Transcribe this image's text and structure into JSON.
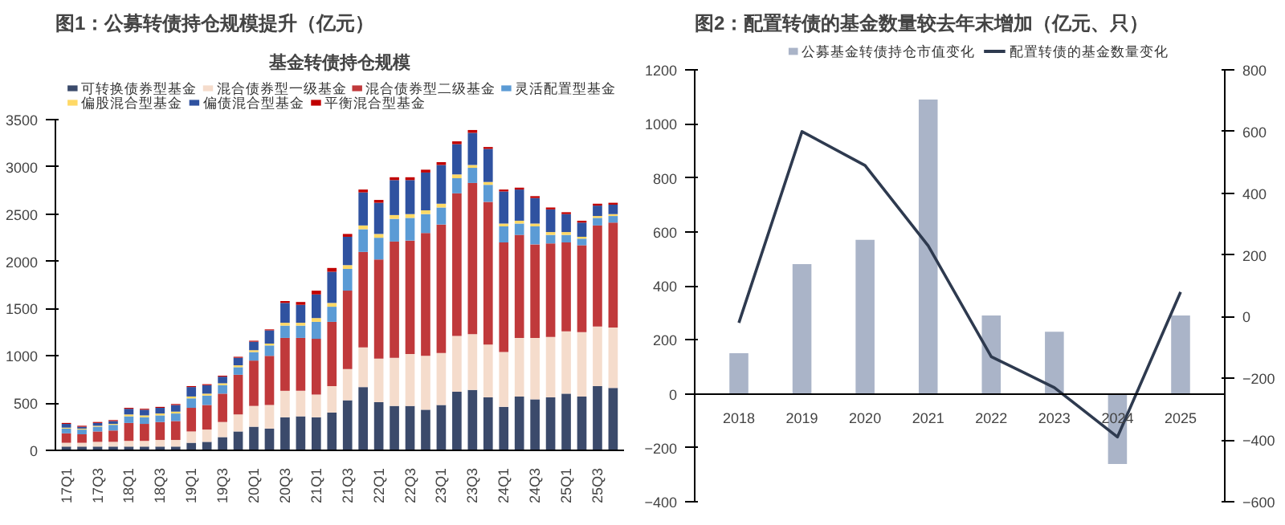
{
  "chart_data": [
    {
      "type": "bar",
      "title": "图1：公募转债持仓规模提升（亿元）",
      "subtitle": "基金转债持仓规模",
      "stacked": true,
      "legend": "top",
      "grid": false,
      "categories": [
        "17Q1",
        null,
        "17Q3",
        null,
        "18Q1",
        null,
        "18Q3",
        null,
        "19Q1",
        null,
        "19Q3",
        null,
        "20Q1",
        null,
        "20Q3",
        null,
        "21Q1",
        null,
        "21Q3",
        null,
        "22Q1",
        null,
        "22Q3",
        null,
        "23Q1",
        null,
        "23Q3",
        null,
        "24Q1",
        null,
        "24Q3",
        null,
        "25Q1",
        null,
        "25Q3",
        null
      ],
      "ylim": [
        0,
        3500
      ],
      "yticks": [
        0,
        500,
        1000,
        1500,
        2000,
        2500,
        3000,
        3500
      ],
      "series": [
        {
          "name": "可转换债券型基金",
          "color": "#3b4a6b",
          "values": [
            40,
            40,
            40,
            40,
            40,
            40,
            40,
            40,
            80,
            90,
            140,
            200,
            250,
            230,
            350,
            360,
            350,
            400,
            530,
            670,
            510,
            470,
            470,
            430,
            480,
            620,
            640,
            560,
            460,
            570,
            540,
            560,
            600,
            570,
            680,
            660
          ]
        },
        {
          "name": "混合债券型一级基金",
          "color": "#f5dccc",
          "values": [
            40,
            40,
            50,
            50,
            60,
            60,
            70,
            70,
            120,
            130,
            160,
            180,
            220,
            250,
            280,
            270,
            240,
            280,
            330,
            420,
            460,
            510,
            550,
            570,
            550,
            590,
            590,
            560,
            580,
            620,
            650,
            640,
            660,
            680,
            630,
            640
          ]
        },
        {
          "name": "混合债券型二级基金",
          "color": "#c0393b",
          "values": [
            100,
            90,
            110,
            120,
            190,
            180,
            190,
            200,
            250,
            260,
            300,
            420,
            480,
            520,
            560,
            560,
            590,
            680,
            830,
            1010,
            1050,
            1230,
            1200,
            1300,
            1360,
            1510,
            1600,
            1510,
            1160,
            1090,
            990,
            990,
            940,
            920,
            1070,
            1110
          ]
        },
        {
          "name": "灵活配置型基金",
          "color": "#5b9bd5",
          "values": [
            50,
            50,
            50,
            60,
            70,
            70,
            70,
            80,
            100,
            100,
            90,
            80,
            90,
            110,
            130,
            130,
            180,
            160,
            230,
            240,
            230,
            240,
            240,
            200,
            180,
            160,
            160,
            180,
            170,
            120,
            190,
            90,
            80,
            70,
            80,
            70
          ]
        },
        {
          "name": "偏股混合型基金",
          "color": "#ffd966",
          "values": [
            10,
            10,
            10,
            10,
            20,
            20,
            20,
            20,
            20,
            20,
            20,
            20,
            20,
            20,
            30,
            30,
            40,
            40,
            40,
            40,
            40,
            40,
            40,
            40,
            40,
            40,
            30,
            30,
            30,
            30,
            30,
            30,
            30,
            20,
            20,
            20
          ]
        },
        {
          "name": "偏债混合型基金",
          "color": "#2f52a0",
          "values": [
            40,
            20,
            30,
            30,
            60,
            60,
            60,
            70,
            100,
            90,
            70,
            80,
            90,
            140,
            210,
            190,
            250,
            330,
            300,
            350,
            330,
            370,
            360,
            400,
            410,
            320,
            340,
            350,
            340,
            330,
            270,
            240,
            190,
            150,
            110,
            100
          ]
        },
        {
          "name": "平衡混合型基金",
          "color": "#c00000",
          "values": [
            10,
            10,
            10,
            10,
            10,
            10,
            10,
            10,
            10,
            10,
            10,
            10,
            10,
            10,
            20,
            30,
            40,
            40,
            30,
            30,
            30,
            30,
            30,
            30,
            30,
            30,
            30,
            20,
            20,
            20,
            20,
            20,
            20,
            20,
            20,
            20
          ]
        }
      ]
    },
    {
      "type": "bar",
      "title": "图2：配置转债的基金数量较去年末增加（亿元、只）",
      "legend": "top",
      "grid": false,
      "categories": [
        "2018",
        "2019",
        "2020",
        "2021",
        "2022",
        "2023",
        "2024",
        "2025"
      ],
      "ylim": [
        -400,
        1200
      ],
      "yticks": [
        -400,
        -200,
        0,
        200,
        400,
        600,
        800,
        1000,
        1200
      ],
      "y2lim": [
        -600,
        800
      ],
      "y2ticks": [
        -600,
        -400,
        -200,
        0,
        200,
        400,
        600,
        800
      ],
      "series": [
        {
          "name": "公募基金转债持仓市值变化",
          "color": "#aab4c8",
          "values": [
            150,
            480,
            570,
            1090,
            290,
            230,
            -260,
            290
          ]
        },
        {
          "name": "配置转债的基金数量变化",
          "type": "line",
          "axis": "y2",
          "color": "#2e3a4f",
          "values": [
            -20,
            600,
            490,
            230,
            -130,
            -230,
            -390,
            80
          ]
        }
      ]
    }
  ]
}
